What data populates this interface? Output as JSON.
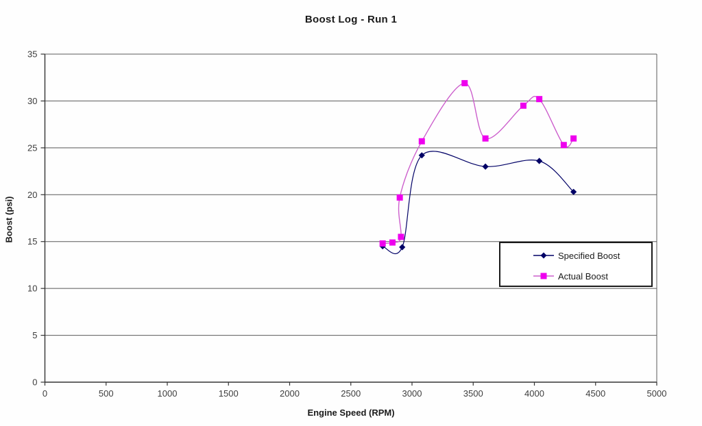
{
  "chart_data": {
    "type": "line",
    "title": "Boost Log - Run 1",
    "xlabel": "Engine Speed (RPM)",
    "ylabel": "Boost (psi)",
    "xlim": [
      0,
      5000
    ],
    "ylim": [
      0,
      35
    ],
    "x_ticks": [
      0,
      500,
      1000,
      1500,
      2000,
      2500,
      3000,
      3500,
      4000,
      4500,
      5000
    ],
    "y_ticks": [
      0,
      5,
      10,
      15,
      20,
      25,
      30,
      35
    ],
    "grid": "horizontal",
    "smoothed_lines": true,
    "legend_position": "inside lower-right, bordered box",
    "series": [
      {
        "name": "Specified Boost",
        "marker": "diamond",
        "line_color": "#000066",
        "marker_color": "#000066",
        "points": [
          [
            2760,
            14.5
          ],
          [
            2920,
            14.4
          ],
          [
            3080,
            24.2
          ],
          [
            3600,
            23.0
          ],
          [
            4040,
            23.6
          ],
          [
            4320,
            20.3
          ]
        ]
      },
      {
        "name": "Actual Boost",
        "marker": "square",
        "line_color": "#cc5ecc",
        "marker_color": "#ee00ee",
        "points": [
          [
            2760,
            14.8
          ],
          [
            2840,
            14.9
          ],
          [
            2910,
            15.5
          ],
          [
            2900,
            19.7
          ],
          [
            3080,
            25.7
          ],
          [
            3430,
            31.9
          ],
          [
            3600,
            26.0
          ],
          [
            3910,
            29.5
          ],
          [
            4040,
            30.2
          ],
          [
            4240,
            25.3
          ],
          [
            4320,
            26.0
          ]
        ]
      }
    ]
  },
  "style": {
    "grid_color": "#595959",
    "axis_color": "#333333",
    "tick_label_color": "#3d3d3d",
    "plot_background": "#fefefe"
  }
}
